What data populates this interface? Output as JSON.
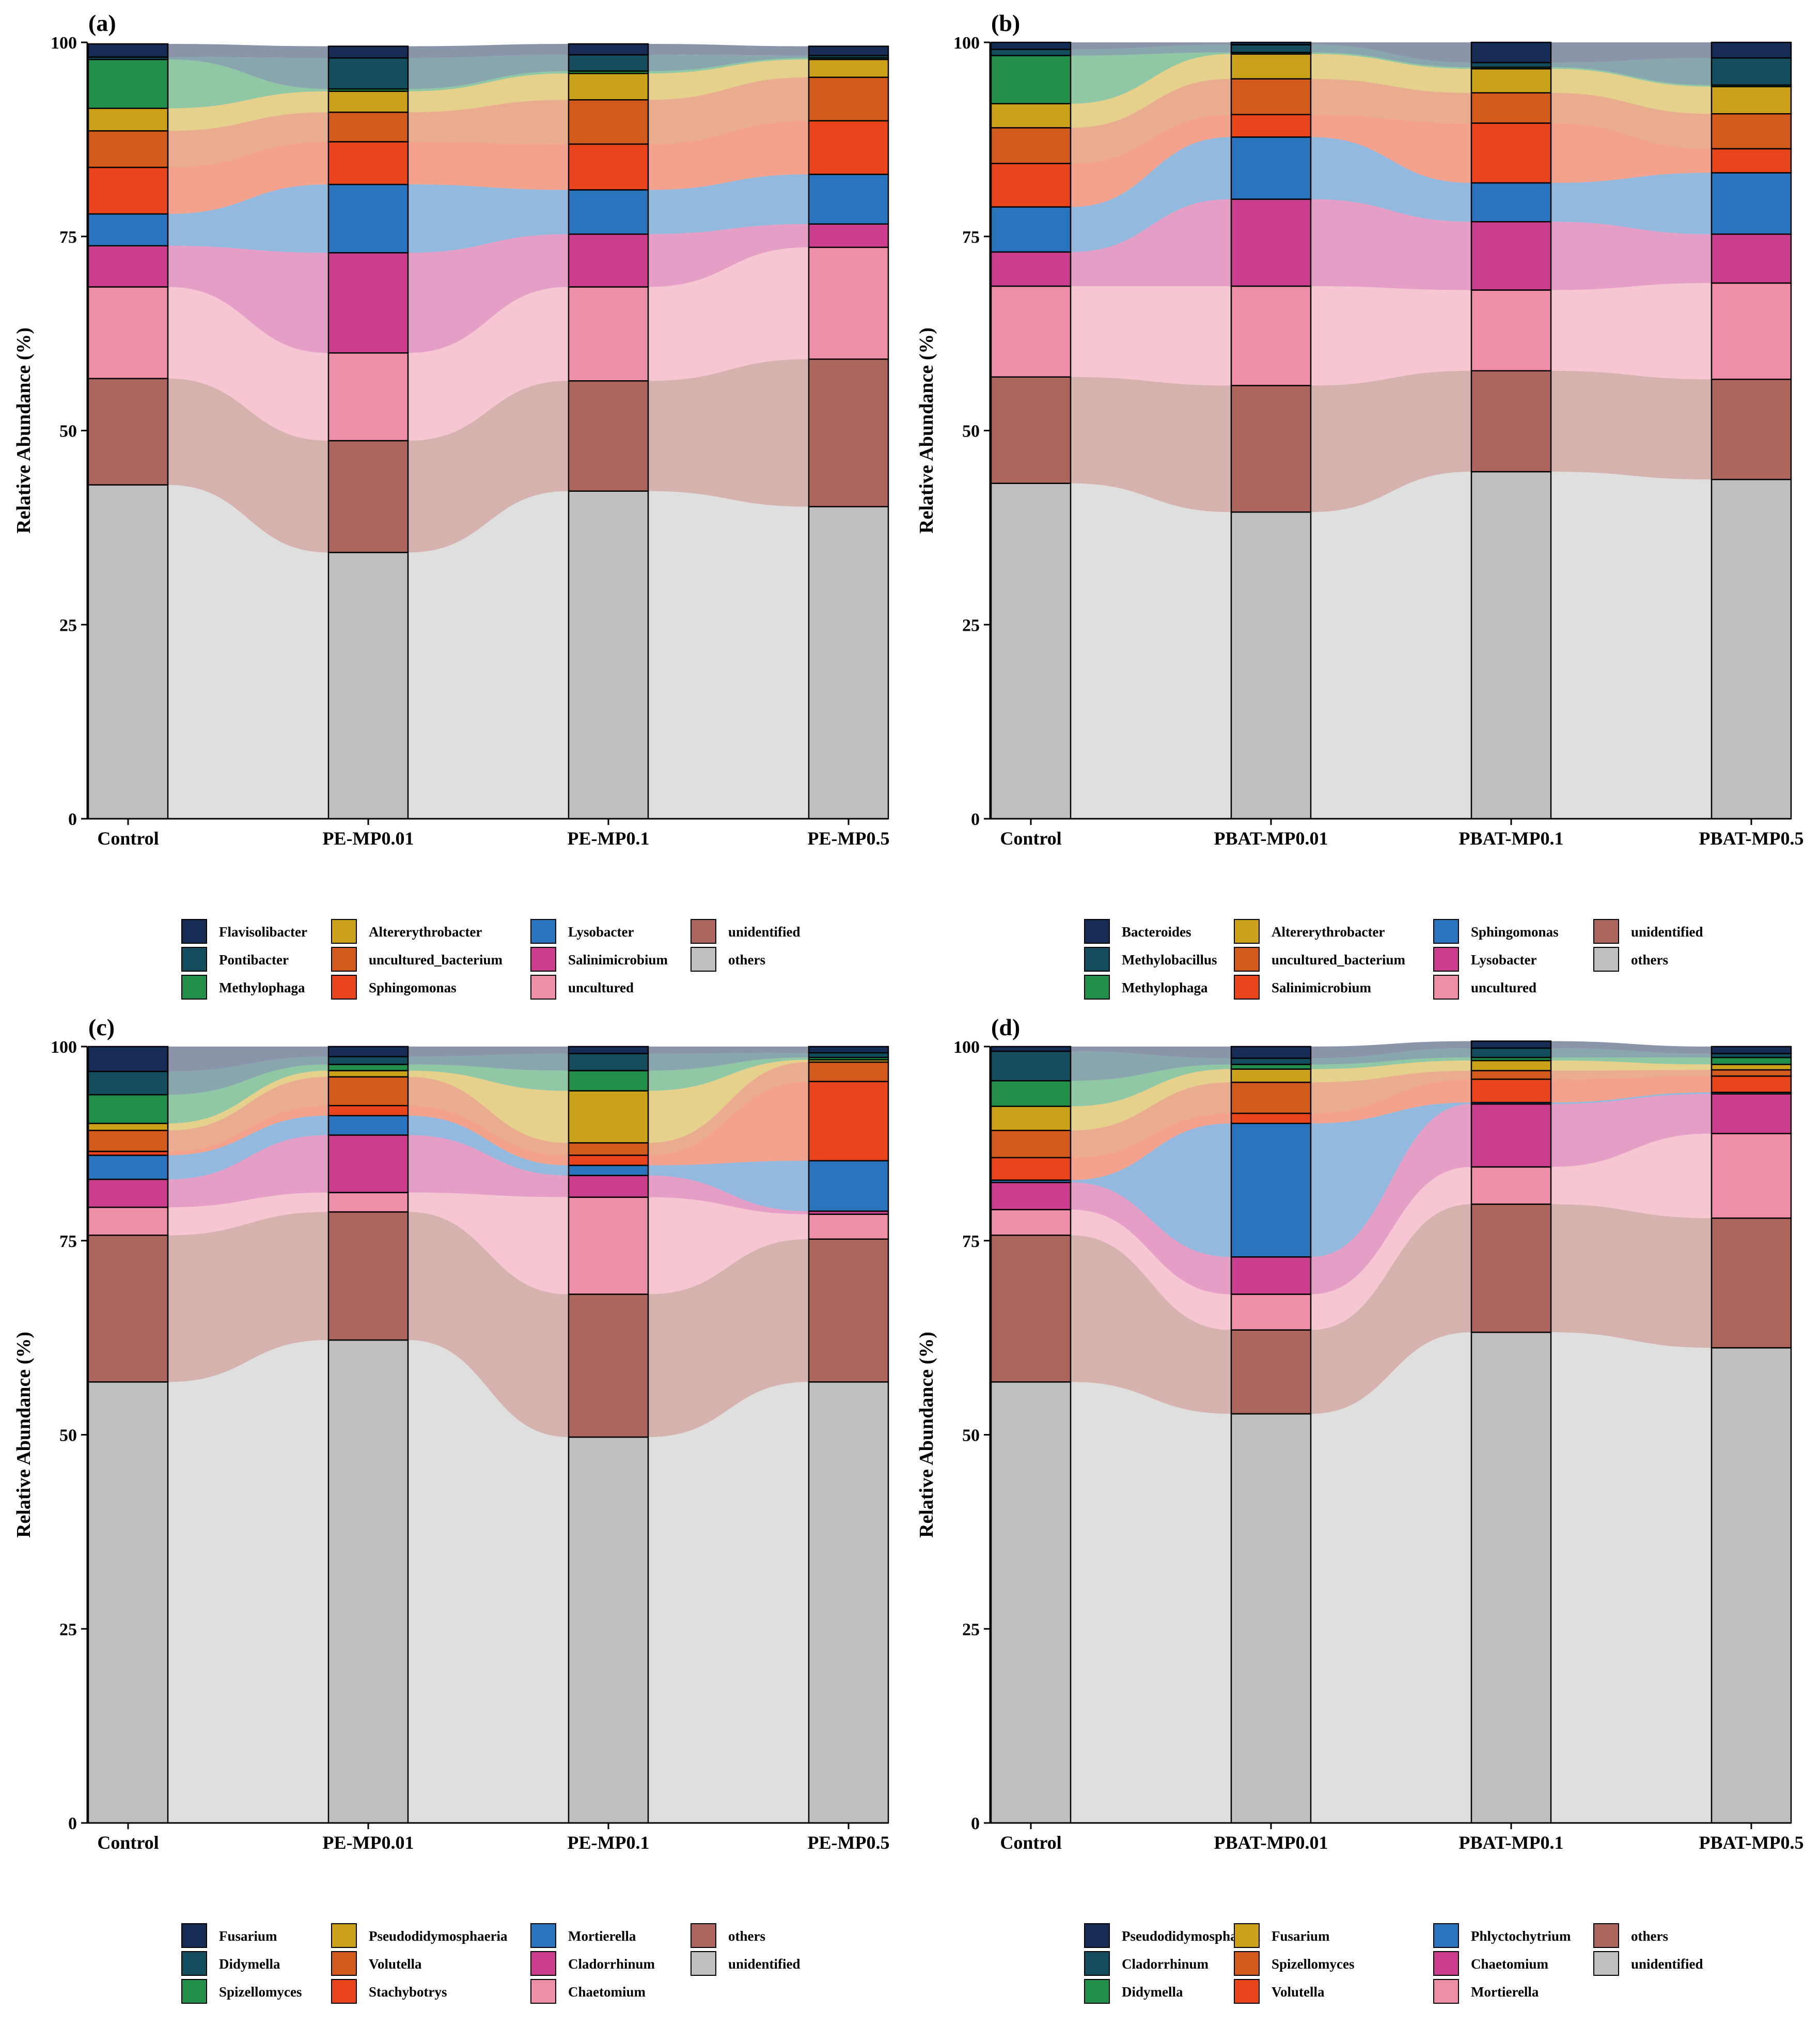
{
  "colors": {
    "others": "#bfbfbf",
    "unidentified": "#ad665e",
    "uncultured": "#ee8ea7",
    "salinimicrobium": "#cb3e8d",
    "lysobacter": "#2a74bd",
    "sphingomonas": "#e8451c",
    "uncultured_bacterium": "#d35a1d",
    "altererythrobacter": "#cca11a",
    "methylophaga": "#22904a",
    "pontibacter": "#144e5e",
    "flavisolibacter": "#172c55"
  },
  "chart_data": [
    {
      "id": "a",
      "type": "stacked-bar-alluvial",
      "panel_label": "(a)",
      "ylabel": "Relative Abundance (%)",
      "ylim": [
        0,
        100
      ],
      "yticks": [
        "0",
        "25",
        "50",
        "75",
        "100"
      ],
      "categories": [
        "Control",
        "PE-MP0.01",
        "PE-MP0.1",
        "PE-MP0.5"
      ],
      "series": [
        {
          "name": "others",
          "color_key": "others",
          "values": [
            43.0,
            34.3,
            42.2,
            40.2
          ]
        },
        {
          "name": "unidentified",
          "color_key": "unidentified",
          "values": [
            13.7,
            14.4,
            14.2,
            19.0
          ]
        },
        {
          "name": "uncultured",
          "color_key": "uncultured",
          "values": [
            11.8,
            11.3,
            12.1,
            14.4
          ]
        },
        {
          "name": "Salinimicrobium",
          "color_key": "salinimicrobium",
          "values": [
            5.3,
            12.9,
            6.8,
            3.0
          ]
        },
        {
          "name": "Lysobacter",
          "color_key": "lysobacter",
          "values": [
            4.1,
            8.8,
            5.7,
            6.4
          ]
        },
        {
          "name": "Sphingomonas",
          "color_key": "sphingomonas",
          "values": [
            6.0,
            5.5,
            5.9,
            6.9
          ]
        },
        {
          "name": "uncultured_bacterium",
          "color_key": "uncultured_bacterium",
          "values": [
            4.7,
            3.8,
            5.7,
            5.6
          ]
        },
        {
          "name": "Altererythrobacter",
          "color_key": "altererythrobacter",
          "values": [
            2.9,
            2.7,
            3.4,
            2.3
          ]
        },
        {
          "name": "Methylophaga",
          "color_key": "methylophaga",
          "values": [
            6.3,
            0.3,
            0.3,
            0.2
          ]
        },
        {
          "name": "Pontibacter",
          "color_key": "pontibacter",
          "values": [
            0.3,
            4.0,
            2.1,
            0.3
          ]
        },
        {
          "name": "Flavisolibacter",
          "color_key": "flavisolibacter",
          "values": [
            1.7,
            1.5,
            1.4,
            1.2
          ]
        }
      ],
      "legend": [
        "Flavisolibacter",
        "Pontibacter",
        "Methylophaga",
        "Altererythrobacter",
        "uncultured_bacterium",
        "Sphingomonas",
        "Lysobacter",
        "Salinimicrobium",
        "uncultured",
        "unidentified",
        "others"
      ]
    },
    {
      "id": "b",
      "type": "stacked-bar-alluvial",
      "panel_label": "(b)",
      "ylabel": "Relative Abundance (%)",
      "ylim": [
        0,
        100
      ],
      "yticks": [
        "0",
        "25",
        "50",
        "75",
        "100"
      ],
      "categories": [
        "Control",
        "PBAT-MP0.01",
        "PBAT-MP0.1",
        "PBAT-MP0.5"
      ],
      "series": [
        {
          "name": "others",
          "color_key": "others",
          "values": [
            43.2,
            39.5,
            44.7,
            43.7
          ]
        },
        {
          "name": "unidentified",
          "color_key": "unidentified",
          "values": [
            13.7,
            16.3,
            13.0,
            12.9
          ]
        },
        {
          "name": "uncultured",
          "color_key": "uncultured",
          "values": [
            11.7,
            12.8,
            10.4,
            12.4
          ]
        },
        {
          "name": "Lysobacter",
          "color_key": "salinimicrobium",
          "values": [
            4.4,
            11.2,
            8.8,
            6.3
          ]
        },
        {
          "name": "Sphingomonas",
          "color_key": "lysobacter",
          "values": [
            5.8,
            8.0,
            5.0,
            7.9
          ]
        },
        {
          "name": "Salinimicrobium",
          "color_key": "sphingomonas",
          "values": [
            5.6,
            2.9,
            7.7,
            3.1
          ]
        },
        {
          "name": "uncultured_bacterium",
          "color_key": "uncultured_bacterium",
          "values": [
            4.6,
            4.6,
            3.9,
            4.5
          ]
        },
        {
          "name": "Altererythrobacter",
          "color_key": "altererythrobacter",
          "values": [
            3.1,
            3.2,
            3.1,
            3.5
          ]
        },
        {
          "name": "Methylophaga",
          "color_key": "methylophaga",
          "values": [
            6.2,
            0.2,
            0.2,
            0.2
          ]
        },
        {
          "name": "Methylobacillus",
          "color_key": "pontibacter",
          "values": [
            0.8,
            1.0,
            0.6,
            3.5
          ]
        },
        {
          "name": "Bacteroides",
          "color_key": "flavisolibacter",
          "values": [
            0.9,
            0.3,
            2.6,
            2.0
          ]
        }
      ],
      "legend": [
        "Bacteroides",
        "Methylobacillus",
        "Methylophaga",
        "Altererythrobacter",
        "uncultured_bacterium",
        "Salinimicrobium",
        "Sphingomonas",
        "Lysobacter",
        "uncultured",
        "unidentified",
        "others"
      ]
    },
    {
      "id": "c",
      "type": "stacked-bar-alluvial",
      "panel_label": "(c)",
      "ylabel": "Relative Abundance (%)",
      "ylim": [
        0,
        100
      ],
      "yticks": [
        "0",
        "25",
        "50",
        "75",
        "100"
      ],
      "categories": [
        "Control",
        "PE-MP0.01",
        "PE-MP0.1",
        "PE-MP0.5"
      ],
      "series": [
        {
          "name": "unidentified",
          "color_key": "others",
          "values": [
            56.8,
            62.2,
            49.7,
            56.8
          ]
        },
        {
          "name": "others",
          "color_key": "unidentified",
          "values": [
            18.9,
            16.5,
            18.4,
            18.4
          ]
        },
        {
          "name": "Chaetomium",
          "color_key": "uncultured",
          "values": [
            3.6,
            2.5,
            12.5,
            3.2
          ]
        },
        {
          "name": "Cladorrhinum",
          "color_key": "salinimicrobium",
          "values": [
            3.6,
            7.4,
            2.8,
            0.4
          ]
        },
        {
          "name": "Mortierella",
          "color_key": "lysobacter",
          "values": [
            3.1,
            2.5,
            1.3,
            6.5
          ]
        },
        {
          "name": "Stachybotrys",
          "color_key": "sphingomonas",
          "values": [
            0.5,
            1.3,
            1.3,
            10.2
          ]
        },
        {
          "name": "Volutella",
          "color_key": "uncultured_bacterium",
          "values": [
            2.7,
            3.7,
            1.6,
            2.5
          ]
        },
        {
          "name": "Pseudodidymosphaeria",
          "color_key": "altererythrobacter",
          "values": [
            0.9,
            0.8,
            6.7,
            0.3
          ]
        },
        {
          "name": "Spizellomyces",
          "color_key": "methylophaga",
          "values": [
            3.7,
            0.8,
            2.6,
            0.3
          ]
        },
        {
          "name": "Didymella",
          "color_key": "pontibacter",
          "values": [
            3.0,
            1.0,
            2.2,
            0.6
          ]
        },
        {
          "name": "Fusarium",
          "color_key": "flavisolibacter",
          "values": [
            3.2,
            1.3,
            0.9,
            0.8
          ]
        }
      ],
      "legend": [
        "Fusarium",
        "Didymella",
        "Spizellomyces",
        "Pseudodidymosphaeria",
        "Volutella",
        "Stachybotrys",
        "Mortierella",
        "Cladorrhinum",
        "Chaetomium",
        "others",
        "unidentified"
      ]
    },
    {
      "id": "d",
      "type": "stacked-bar-alluvial",
      "panel_label": "(d)",
      "ylabel": "Relative Abundance (%)",
      "ylim": [
        0,
        100
      ],
      "yticks": [
        "0",
        "25",
        "50",
        "75",
        "100"
      ],
      "categories": [
        "Control",
        "PBAT-MP0.01",
        "PBAT-MP0.1",
        "PBAT-MP0.5"
      ],
      "series": [
        {
          "name": "unidentified",
          "color_key": "others",
          "values": [
            56.8,
            52.7,
            63.2,
            61.2
          ]
        },
        {
          "name": "others",
          "color_key": "unidentified",
          "values": [
            18.9,
            10.8,
            16.5,
            16.7
          ]
        },
        {
          "name": "Mortierella",
          "color_key": "uncultured",
          "values": [
            3.3,
            4.6,
            4.8,
            10.9
          ]
        },
        {
          "name": "Chaetomium",
          "color_key": "salinimicrobium",
          "values": [
            3.5,
            4.8,
            8.1,
            5.1
          ]
        },
        {
          "name": "Phlyctochytrium",
          "color_key": "lysobacter",
          "values": [
            0.3,
            17.2,
            0.2,
            0.2
          ]
        },
        {
          "name": "Volutella",
          "color_key": "sphingomonas",
          "values": [
            2.9,
            1.3,
            3.0,
            2.1
          ]
        },
        {
          "name": "Spizellomyces",
          "color_key": "uncultured_bacterium",
          "values": [
            3.5,
            4.0,
            1.1,
            0.8
          ]
        },
        {
          "name": "Fusarium",
          "color_key": "altererythrobacter",
          "values": [
            3.1,
            1.7,
            1.3,
            0.7
          ]
        },
        {
          "name": "Didymella",
          "color_key": "methylophaga",
          "values": [
            3.3,
            0.6,
            0.4,
            0.9
          ]
        },
        {
          "name": "Cladorrhinum",
          "color_key": "pontibacter",
          "values": [
            3.8,
            0.8,
            1.2,
            0.5
          ]
        },
        {
          "name": "Pseudodidymosphaeria",
          "color_key": "flavisolibacter",
          "values": [
            0.6,
            1.5,
            0.9,
            0.9
          ]
        }
      ],
      "legend": [
        "Pseudodidymosphaeria",
        "Cladorrhinum",
        "Didymella",
        "Fusarium",
        "Spizellomyces",
        "Volutella",
        "Phlyctochytrium",
        "Chaetomium",
        "Mortierella",
        "others",
        "unidentified"
      ]
    }
  ]
}
